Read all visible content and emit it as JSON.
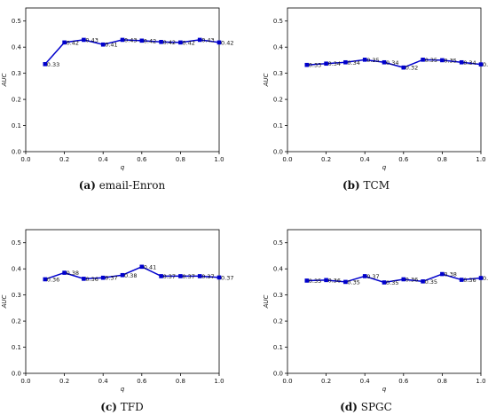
{
  "figure": {
    "colors": {
      "series": "#0000cc",
      "axis": "#000000"
    }
  },
  "panels": [
    {
      "letter": "(a)",
      "name": "email-Enron"
    },
    {
      "letter": "(b)",
      "name": "TCM"
    },
    {
      "letter": "(c)",
      "name": "TFD"
    },
    {
      "letter": "(d)",
      "name": "SPGC"
    }
  ],
  "chart_data": [
    {
      "type": "line",
      "xlabel": "q",
      "ylabel": "AUC",
      "xlim": [
        0.0,
        1.0
      ],
      "ylim": [
        0.0,
        0.55
      ],
      "xticks": [
        "0.0",
        "0.2",
        "0.4",
        "0.6",
        "0.8",
        "1.0"
      ],
      "yticks": [
        "0.0",
        "0.1",
        "0.2",
        "0.3",
        "0.4",
        "0.5"
      ],
      "x": [
        0.1,
        0.2,
        0.3,
        0.4,
        0.5,
        0.6,
        0.7,
        0.8,
        0.9,
        1.0
      ],
      "values": [
        0.335,
        0.418,
        0.428,
        0.41,
        0.428,
        0.425,
        0.42,
        0.418,
        0.428,
        0.418
      ],
      "data_labels": [
        "0.33",
        "0.42",
        "0.43",
        "0.41",
        "0.43",
        "0.42",
        "0.42",
        "0.42",
        "0.43",
        "0.42"
      ]
    },
    {
      "type": "line",
      "xlabel": "q",
      "ylabel": "AUC",
      "xlim": [
        0.0,
        1.0
      ],
      "ylim": [
        0.0,
        0.55
      ],
      "xticks": [
        "0.0",
        "0.2",
        "0.4",
        "0.6",
        "0.8",
        "1.0"
      ],
      "yticks": [
        "0.0",
        "0.1",
        "0.2",
        "0.3",
        "0.4",
        "0.5"
      ],
      "x": [
        0.1,
        0.2,
        0.3,
        0.4,
        0.5,
        0.6,
        0.7,
        0.8,
        0.9,
        1.0
      ],
      "values": [
        0.332,
        0.337,
        0.342,
        0.352,
        0.342,
        0.322,
        0.352,
        0.35,
        0.342,
        0.334
      ],
      "data_labels": [
        "0.33",
        "0.34",
        "0.34",
        "0.35",
        "0.34",
        "0.32",
        "0.35",
        "0.35",
        "0.34",
        "0.33"
      ]
    },
    {
      "type": "line",
      "xlabel": "q",
      "ylabel": "AUC",
      "xlim": [
        0.0,
        1.0
      ],
      "ylim": [
        0.0,
        0.55
      ],
      "xticks": [
        "0.0",
        "0.2",
        "0.4",
        "0.6",
        "0.8",
        "1.0"
      ],
      "yticks": [
        "0.0",
        "0.1",
        "0.2",
        "0.3",
        "0.4",
        "0.5"
      ],
      "x": [
        0.1,
        0.2,
        0.3,
        0.4,
        0.5,
        0.6,
        0.7,
        0.8,
        0.9,
        1.0
      ],
      "values": [
        0.36,
        0.385,
        0.362,
        0.366,
        0.376,
        0.408,
        0.372,
        0.372,
        0.372,
        0.367
      ],
      "data_labels": [
        "0.36",
        "0.38",
        "0.36",
        "0.37",
        "0.38",
        "0.41",
        "0.37",
        "0.37",
        "0.37",
        "0.37"
      ]
    },
    {
      "type": "line",
      "xlabel": "q",
      "ylabel": "AUC",
      "xlim": [
        0.0,
        1.0
      ],
      "ylim": [
        0.0,
        0.55
      ],
      "xticks": [
        "0.0",
        "0.2",
        "0.4",
        "0.6",
        "0.8",
        "1.0"
      ],
      "yticks": [
        "0.0",
        "0.1",
        "0.2",
        "0.3",
        "0.4",
        "0.5"
      ],
      "x": [
        0.1,
        0.2,
        0.3,
        0.4,
        0.5,
        0.6,
        0.7,
        0.8,
        0.9,
        1.0
      ],
      "values": [
        0.355,
        0.357,
        0.35,
        0.372,
        0.348,
        0.36,
        0.352,
        0.38,
        0.358,
        0.365
      ],
      "data_labels": [
        "0.35",
        "0.36",
        "0.35",
        "0.37",
        "0.35",
        "0.36",
        "0.35",
        "0.38",
        "0.36",
        "0.36"
      ]
    }
  ]
}
